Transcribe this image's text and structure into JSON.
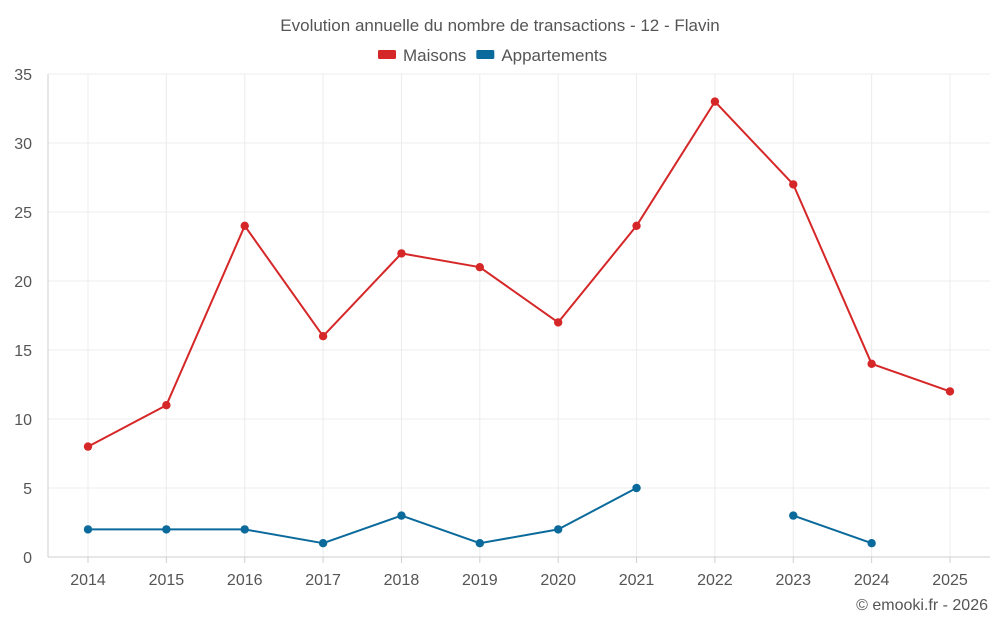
{
  "chart_data": {
    "type": "line",
    "title": "Evolution annuelle du nombre de transactions - 12 - Flavin",
    "categories": [
      "2014",
      "2015",
      "2016",
      "2017",
      "2018",
      "2019",
      "2020",
      "2021",
      "2022",
      "2023",
      "2024",
      "2025"
    ],
    "ylim": [
      0,
      35
    ],
    "yticks": [
      0,
      5,
      10,
      15,
      20,
      25,
      30,
      35
    ],
    "grid": true,
    "legend_position": "top-center",
    "series": [
      {
        "name": "Maisons",
        "color": "#d62728",
        "values": [
          8,
          11,
          24,
          16,
          22,
          21,
          17,
          24,
          33,
          27,
          14,
          12
        ]
      },
      {
        "name": "Appartements",
        "color": "#0b6a9c",
        "values": [
          2,
          2,
          2,
          1,
          3,
          1,
          2,
          5,
          null,
          3,
          1,
          null
        ]
      }
    ]
  },
  "credit": "© emooki.fr - 2026"
}
